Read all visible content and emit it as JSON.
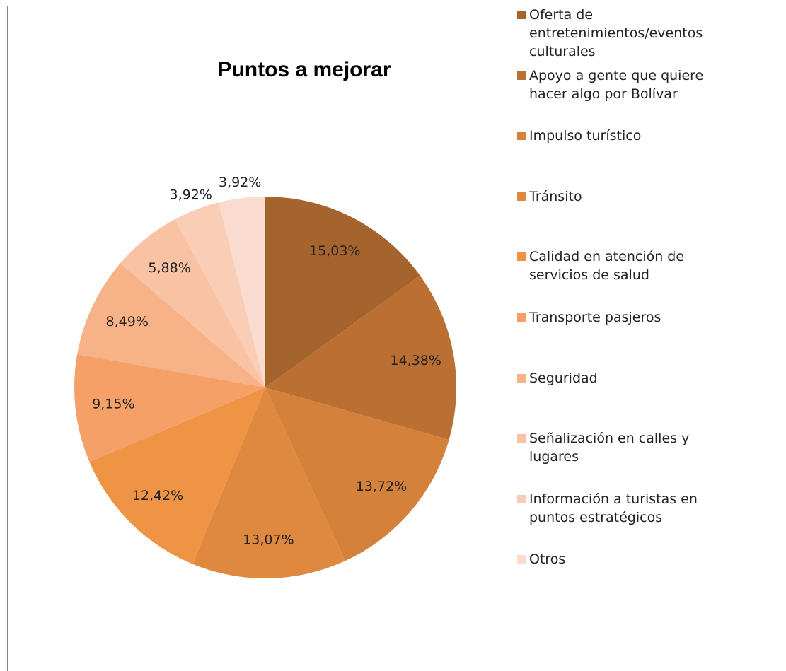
{
  "chart_data": {
    "type": "pie",
    "title": "Puntos a mejorar",
    "categories": [
      "Oferta de entretenimientos/eventos culturales",
      "Apoyo a gente que quiere hacer algo por Bolívar",
      "Impulso turístico",
      "Tránsito",
      "Calidad en atención de servicios de salud",
      "Transporte pasjeros",
      "Seguridad",
      "Señalización en calles y lugares",
      "Información a turistas en puntos estratégicos",
      "Otros"
    ],
    "values": [
      15.03,
      14.38,
      13.72,
      13.07,
      12.42,
      9.15,
      8.49,
      5.88,
      3.92,
      3.92
    ],
    "value_labels": [
      "15,03%",
      "14,38%",
      "13,72%",
      "13,07%",
      "12,42%",
      "9,15%",
      "8,49%",
      "5,88%",
      "3,92%",
      "3,92%"
    ],
    "colors": [
      "#A5632E",
      "#BC6F33",
      "#D4813B",
      "#DF8840",
      "#EE9444",
      "#F4A066",
      "#F7B287",
      "#F8C2A3",
      "#F9CDB6",
      "#FADBCF"
    ],
    "legend": "right"
  }
}
